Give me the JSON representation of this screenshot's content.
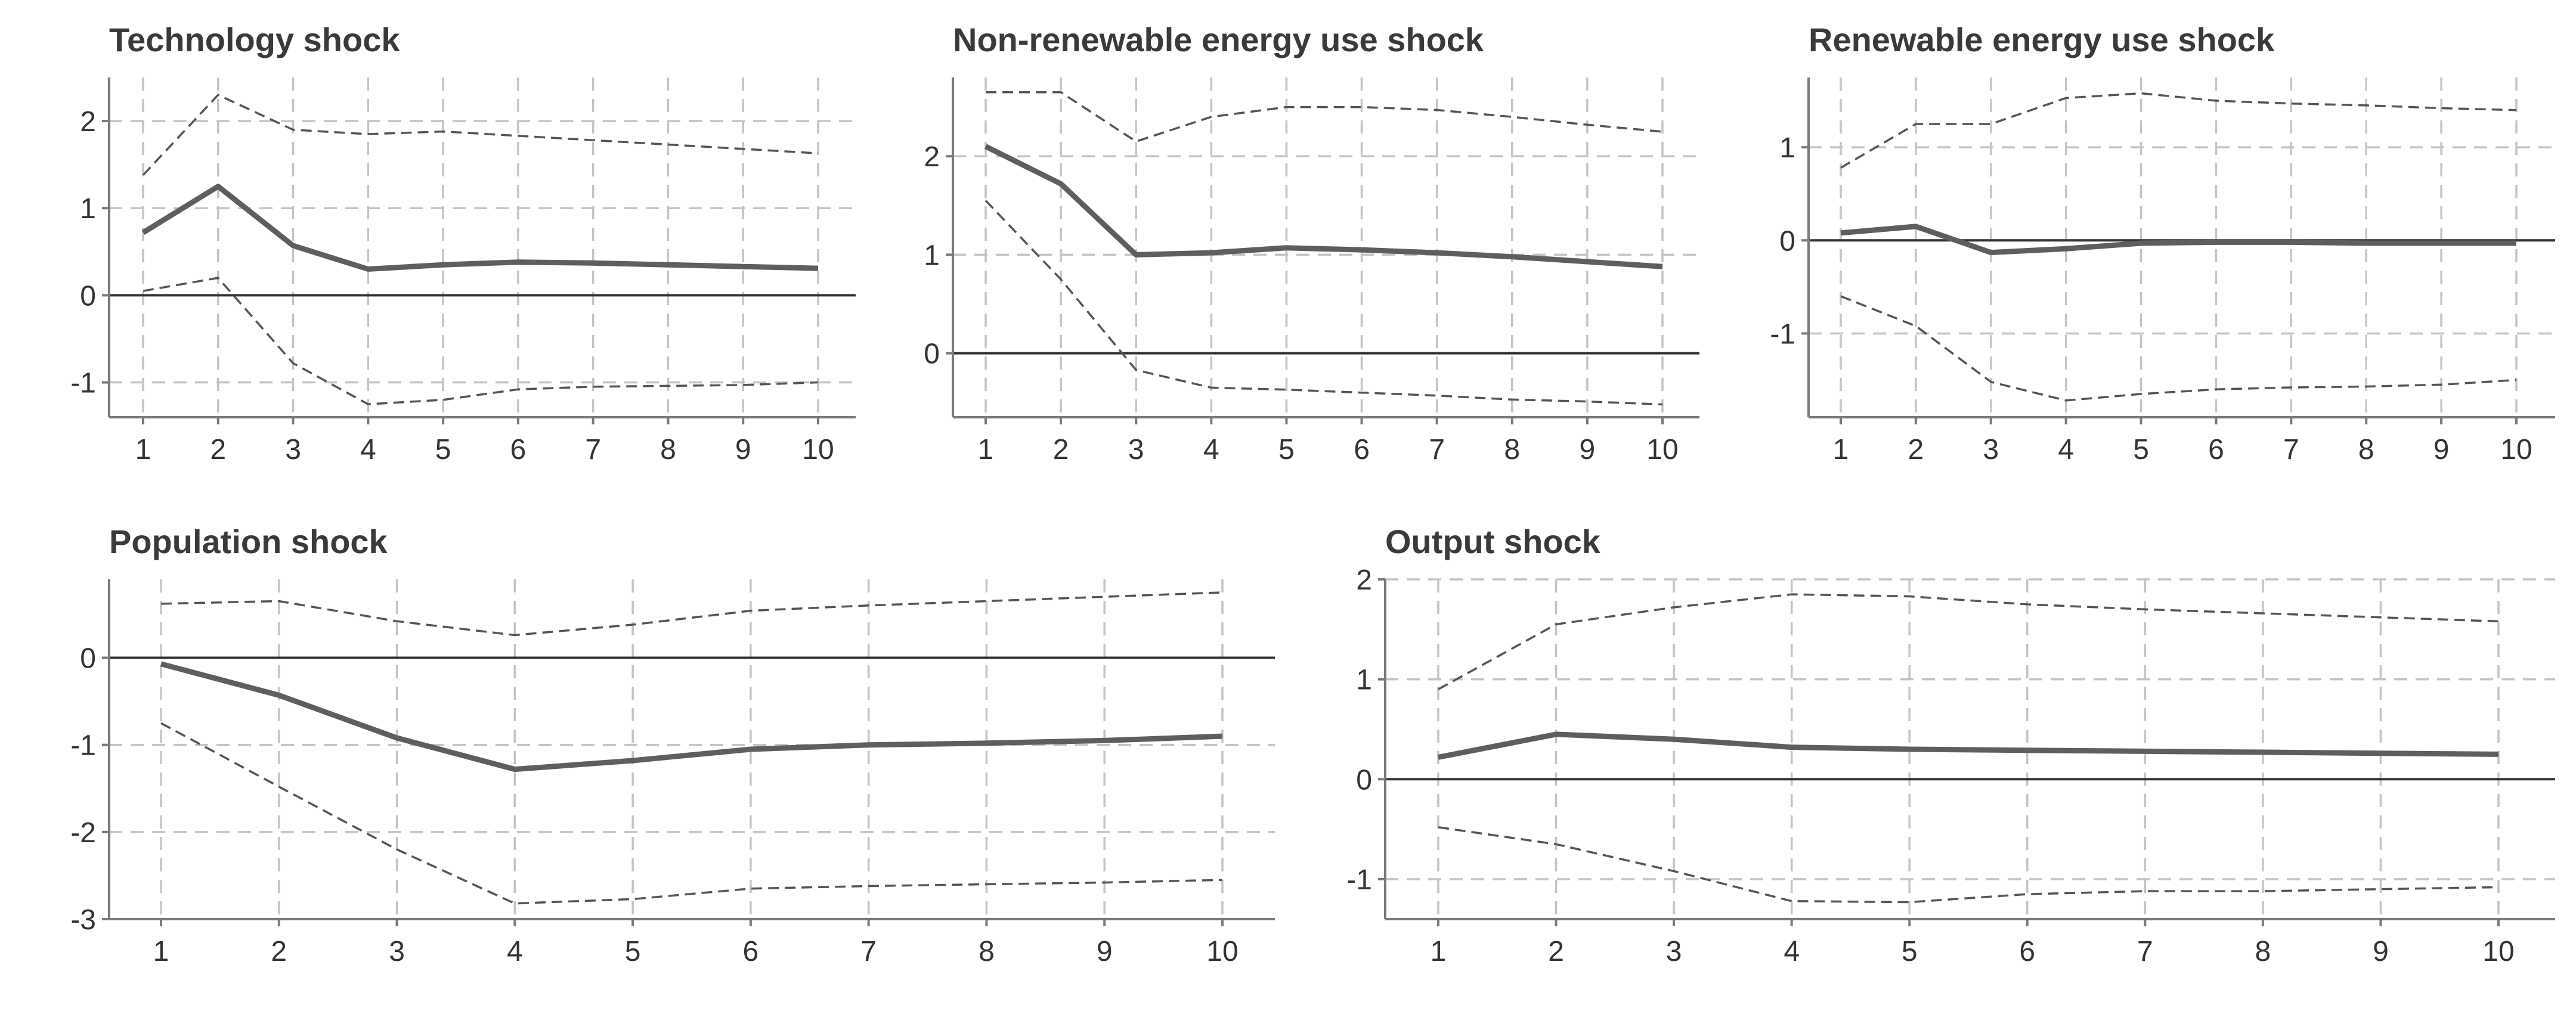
{
  "chart_data": [
    {
      "type": "line",
      "title": "Technology shock",
      "x": [
        1,
        2,
        3,
        4,
        5,
        6,
        7,
        8,
        9,
        10
      ],
      "y_ticks": [
        2,
        1,
        0,
        -1
      ],
      "ylim": [
        -1.4,
        2.5
      ],
      "zero_line": true,
      "grid": true,
      "series": [
        {
          "values": [
            0.72,
            1.25,
            0.57,
            0.3,
            0.35,
            0.38,
            0.37,
            0.35,
            0.33,
            0.31
          ]
        },
        {
          "values": [
            1.38,
            2.3,
            1.9,
            1.85,
            1.88,
            1.83,
            1.78,
            1.73,
            1.68,
            1.63
          ]
        },
        {
          "values": [
            0.05,
            0.2,
            -0.78,
            -1.25,
            -1.2,
            -1.08,
            -1.05,
            -1.04,
            -1.03,
            -1.0
          ]
        }
      ]
    },
    {
      "type": "line",
      "title": "Non-renewable energy use shock",
      "x": [
        1,
        2,
        3,
        4,
        5,
        6,
        7,
        8,
        9,
        10
      ],
      "y_ticks": [
        2,
        1,
        0
      ],
      "ylim": [
        -0.65,
        2.8
      ],
      "zero_line": true,
      "grid": true,
      "series": [
        {
          "values": [
            2.1,
            1.72,
            1.0,
            1.02,
            1.07,
            1.05,
            1.02,
            0.98,
            0.93,
            0.88
          ]
        },
        {
          "values": [
            2.65,
            2.65,
            2.15,
            2.4,
            2.5,
            2.5,
            2.47,
            2.4,
            2.32,
            2.25
          ]
        },
        {
          "values": [
            1.55,
            0.75,
            -0.17,
            -0.35,
            -0.37,
            -0.4,
            -0.43,
            -0.47,
            -0.49,
            -0.52
          ]
        }
      ]
    },
    {
      "type": "line",
      "title": "Renewable energy use shock",
      "x": [
        1,
        2,
        3,
        4,
        5,
        6,
        7,
        8,
        9,
        10
      ],
      "y_ticks": [
        1,
        0,
        -1
      ],
      "ylim": [
        -1.9,
        1.75
      ],
      "zero_line": true,
      "grid": true,
      "series": [
        {
          "values": [
            0.08,
            0.15,
            -0.13,
            -0.09,
            -0.03,
            -0.02,
            -0.02,
            -0.03,
            -0.03,
            -0.03
          ]
        },
        {
          "values": [
            0.78,
            1.25,
            1.25,
            1.53,
            1.58,
            1.5,
            1.47,
            1.45,
            1.42,
            1.4
          ]
        },
        {
          "values": [
            -0.6,
            -0.92,
            -1.52,
            -1.72,
            -1.65,
            -1.6,
            -1.58,
            -1.57,
            -1.55,
            -1.5
          ]
        }
      ]
    },
    {
      "type": "line",
      "title": "Population shock",
      "x": [
        1,
        2,
        3,
        4,
        5,
        6,
        7,
        8,
        9,
        10
      ],
      "y_ticks": [
        0,
        -1,
        -2,
        -3
      ],
      "ylim": [
        -3.0,
        0.9
      ],
      "zero_line": true,
      "grid": true,
      "series": [
        {
          "values": [
            -0.07,
            -0.43,
            -0.92,
            -1.28,
            -1.18,
            -1.05,
            -1.0,
            -0.98,
            -0.95,
            -0.9
          ]
        },
        {
          "values": [
            0.62,
            0.65,
            0.42,
            0.26,
            0.38,
            0.54,
            0.6,
            0.65,
            0.7,
            0.75
          ]
        },
        {
          "values": [
            -0.75,
            -1.48,
            -2.2,
            -2.82,
            -2.77,
            -2.65,
            -2.62,
            -2.6,
            -2.58,
            -2.55
          ]
        }
      ]
    },
    {
      "type": "line",
      "title": "Output shock",
      "x": [
        1,
        2,
        3,
        4,
        5,
        6,
        7,
        8,
        9,
        10
      ],
      "y_ticks": [
        2,
        1,
        0,
        -1
      ],
      "ylim": [
        -1.4,
        2.0
      ],
      "zero_line": true,
      "grid": true,
      "series": [
        {
          "values": [
            0.22,
            0.45,
            0.4,
            0.32,
            0.3,
            0.29,
            0.28,
            0.27,
            0.26,
            0.25
          ]
        },
        {
          "values": [
            0.9,
            1.55,
            1.72,
            1.85,
            1.83,
            1.75,
            1.7,
            1.66,
            1.62,
            1.58
          ]
        },
        {
          "values": [
            -0.48,
            -0.65,
            -0.92,
            -1.22,
            -1.23,
            -1.15,
            -1.12,
            -1.12,
            -1.1,
            -1.08
          ]
        }
      ]
    }
  ]
}
